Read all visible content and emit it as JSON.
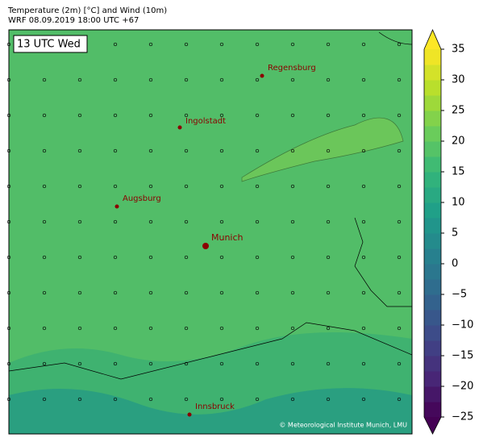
{
  "header": {
    "line1": "Temperature (2m) [°C] and Wind (10m)",
    "line2": "WRF 08.09.2019 18:00 UTC +67"
  },
  "time_label": "13 UTC Wed",
  "cities": [
    "Regensburg",
    "Ingolstadt",
    "Augsburg",
    "Munich",
    "Innsbruck"
  ],
  "credit": "© Meteorological Institute Munich, LMU",
  "colorbar": {
    "range": [
      -25,
      35
    ],
    "ticks": [
      {
        "value": -25,
        "label": "−25"
      },
      {
        "value": -20,
        "label": "−20"
      },
      {
        "value": -15,
        "label": "−15"
      },
      {
        "value": -10,
        "label": "−10"
      },
      {
        "value": -5,
        "label": "−5"
      },
      0,
      5,
      10,
      15,
      20,
      25,
      30,
      35
    ]
  }
}
